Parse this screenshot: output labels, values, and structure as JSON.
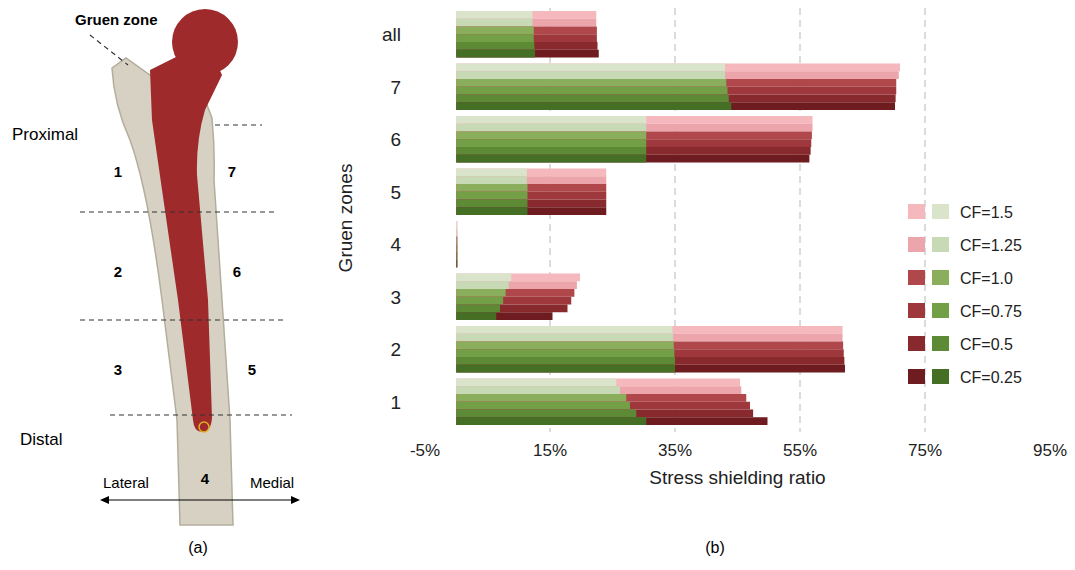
{
  "diagram": {
    "title": "Gruen zone",
    "proximal": "Proximal",
    "distal": "Distal",
    "lateral": "Lateral",
    "medial": "Medial",
    "zones": [
      "1",
      "2",
      "3",
      "4",
      "5",
      "6",
      "7"
    ],
    "caption": "(a)"
  },
  "chart_data": {
    "type": "bar",
    "orientation": "horizontal",
    "grid": true,
    "legend": "lower right",
    "annotations": [
      "(b)"
    ],
    "x_label": "Stress shielding ratio",
    "y_label": "Gruen zones",
    "categories": [
      "1",
      "2",
      "3",
      "4",
      "5",
      "6",
      "7",
      "all"
    ],
    "xlim": [
      -5,
      95
    ],
    "xticks": [
      {
        "value": -5,
        "label": "-5%"
      },
      {
        "value": 15,
        "label": "15%"
      },
      {
        "value": 35,
        "label": "35%"
      },
      {
        "value": 55,
        "label": "55%"
      },
      {
        "value": 75,
        "label": "75%"
      },
      {
        "value": 95,
        "label": "95%"
      }
    ],
    "series": [
      {
        "name": "CF=1.5",
        "color": "#f4b8bd",
        "values": [
          45.4,
          61.8,
          19.8,
          0.2,
          24.0,
          57.0,
          71.0,
          22.4
        ]
      },
      {
        "name": "CF=1.5",
        "color": "#d9e4cb",
        "values": [
          25.6,
          34.6,
          8.8,
          0.1,
          11.3,
          30.4,
          43.0,
          12.2
        ]
      },
      {
        "name": "CF=1.25",
        "color": "#eba5ab",
        "values": [
          45.6,
          61.8,
          19.3,
          0.2,
          24.0,
          57.0,
          70.8,
          22.4
        ]
      },
      {
        "name": "CF=1.25",
        "color": "#c8d9b6",
        "values": [
          26.2,
          34.7,
          8.4,
          0.1,
          11.3,
          30.4,
          43.0,
          12.2
        ]
      },
      {
        "name": "CF=1.0",
        "color": "#b0474b",
        "values": [
          46.4,
          61.9,
          18.9,
          0.2,
          24.0,
          56.9,
          70.4,
          22.5
        ]
      },
      {
        "name": "CF=1.0",
        "color": "#8aae5c",
        "values": [
          27.2,
          34.8,
          7.9,
          0.1,
          11.4,
          30.4,
          43.2,
          12.4
        ]
      },
      {
        "name": "CF=0.75",
        "color": "#9e383c",
        "values": [
          47.0,
          62.0,
          18.4,
          0.2,
          24.0,
          56.8,
          70.4,
          22.5
        ]
      },
      {
        "name": "CF=0.75",
        "color": "#73a047",
        "values": [
          27.8,
          34.9,
          7.5,
          0.1,
          11.4,
          30.4,
          43.4,
          12.4
        ]
      },
      {
        "name": "CF=0.5",
        "color": "#88292d",
        "values": [
          47.5,
          62.1,
          17.8,
          0.2,
          24.0,
          56.7,
          70.3,
          22.6
        ]
      },
      {
        "name": "CF=0.5",
        "color": "#5c8a35",
        "values": [
          28.8,
          35.0,
          7.0,
          0.1,
          11.4,
          30.4,
          43.6,
          12.5
        ]
      },
      {
        "name": "CF=0.25",
        "color": "#6e1c1f",
        "values": [
          49.8,
          62.2,
          15.4,
          0.2,
          24.0,
          56.5,
          70.2,
          22.8
        ]
      },
      {
        "name": "CF=0.25",
        "color": "#456f25",
        "values": [
          30.4,
          35.0,
          6.4,
          0.1,
          11.4,
          30.4,
          44.0,
          12.6
        ]
      }
    ]
  }
}
